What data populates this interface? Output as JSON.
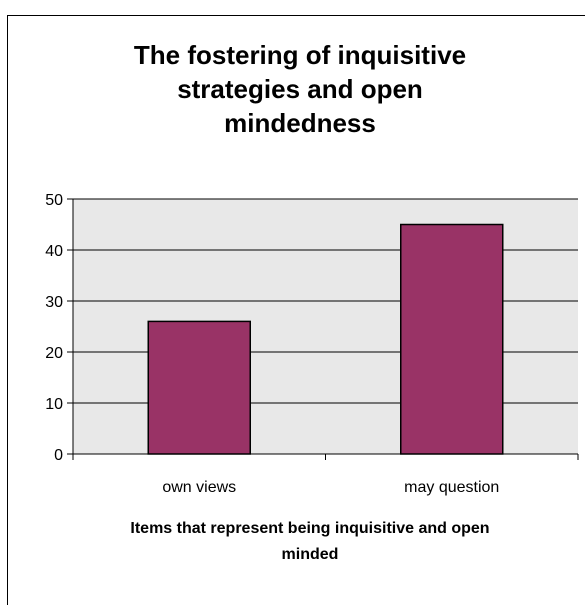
{
  "chart_data": {
    "type": "bar",
    "title": "The fostering of inquisitive\nstrategies and open\nmindedness",
    "xlabel": "Items that represent being inquisitive and open\nminded",
    "ylabel": "",
    "categories": [
      "own views",
      "may question"
    ],
    "values": [
      26,
      45
    ],
    "ylim": [
      0,
      50
    ],
    "yticks": [
      "0",
      "10",
      "20",
      "30",
      "40",
      "50"
    ],
    "grid": true,
    "legend": "none",
    "colors": {
      "bar": "#993366",
      "plot_background": "#e8e8e8",
      "grid": "#000000"
    }
  }
}
